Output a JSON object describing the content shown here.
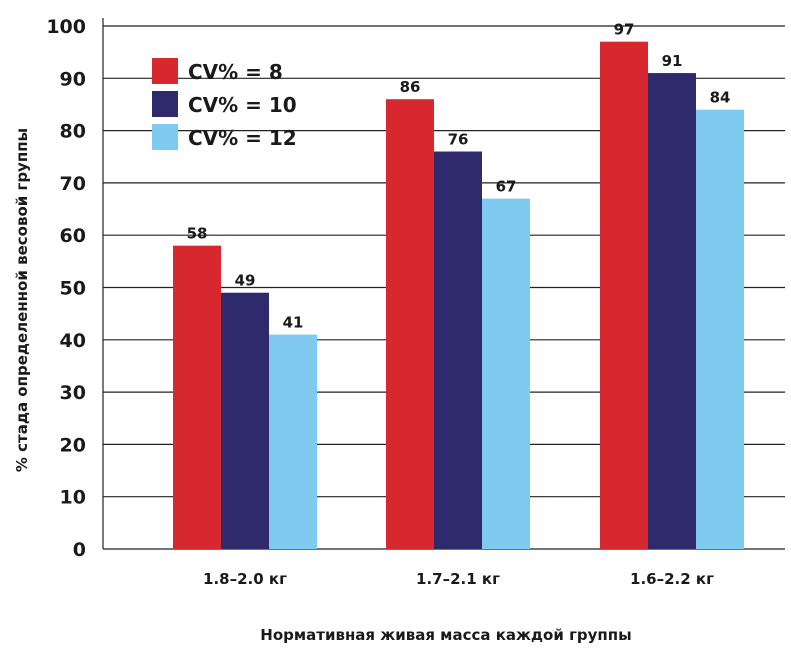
{
  "chart_data": {
    "type": "bar",
    "categories": [
      "1.8–2.0 кг",
      "1.7–2.1 кг",
      "1.6–2.2 кг"
    ],
    "series": [
      {
        "name": "CV% = 8",
        "color": "#d8282f",
        "values": [
          58,
          86,
          97
        ]
      },
      {
        "name": "CV% = 10",
        "color": "#2e2a6b",
        "values": [
          49,
          76,
          91
        ]
      },
      {
        "name": "CV% = 12",
        "color": "#7fcbf0",
        "values": [
          41,
          67,
          84
        ]
      }
    ],
    "data_labels": [
      [
        "58",
        "86",
        "97"
      ],
      [
        "49",
        "76",
        "91"
      ],
      [
        "41",
        "67",
        "84"
      ]
    ],
    "title": "",
    "xlabel": "Нормативная живая масса каждой группы",
    "ylabel": "% стада определенной весовой группы",
    "ylim": [
      0,
      100
    ],
    "yticks": [
      0,
      10,
      20,
      30,
      40,
      50,
      60,
      70,
      80,
      90,
      100
    ],
    "grid": true,
    "legend_position": "top-left"
  }
}
